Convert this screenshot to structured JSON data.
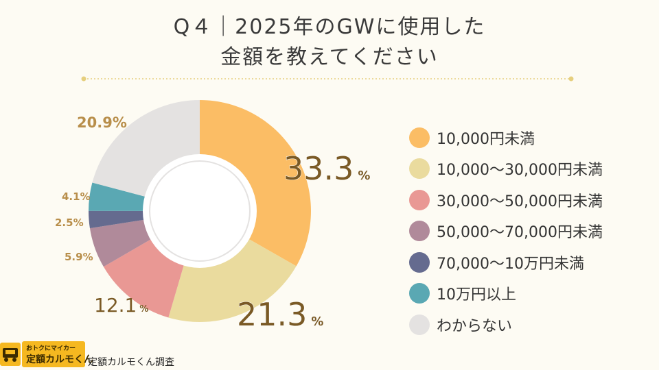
{
  "title": {
    "line1": "Q４｜2025年のGWに使用した",
    "line2": "金額を教えてください"
  },
  "chart_data": {
    "type": "pie",
    "title": "Q４｜2025年のGWに使用した金額を教えてください",
    "unit": "%",
    "categories": [
      "10,000円未満",
      "10,000～30,000円未満",
      "30,000～50,000円未満",
      "50,000～70,000円未満",
      "70,000～10万円未満",
      "10万円以上",
      "わからない"
    ],
    "values": [
      33.3,
      21.3,
      12.1,
      5.9,
      2.5,
      4.1,
      20.9
    ],
    "labels": [
      "33.3",
      "21.3",
      "12.1",
      "5.9%",
      "2.5%",
      "4.1%",
      "20.9%"
    ],
    "colors": [
      "#fbbd65",
      "#eadb9e",
      "#e99894",
      "#b08a9a",
      "#656b8f",
      "#5aa8b3",
      "#e4e2e1"
    ],
    "legend_position": "right"
  },
  "footer": {
    "logo_small": "おトクにマイカー",
    "logo_big": "定額カルモくん",
    "credit": "定額カルモくん調査"
  }
}
